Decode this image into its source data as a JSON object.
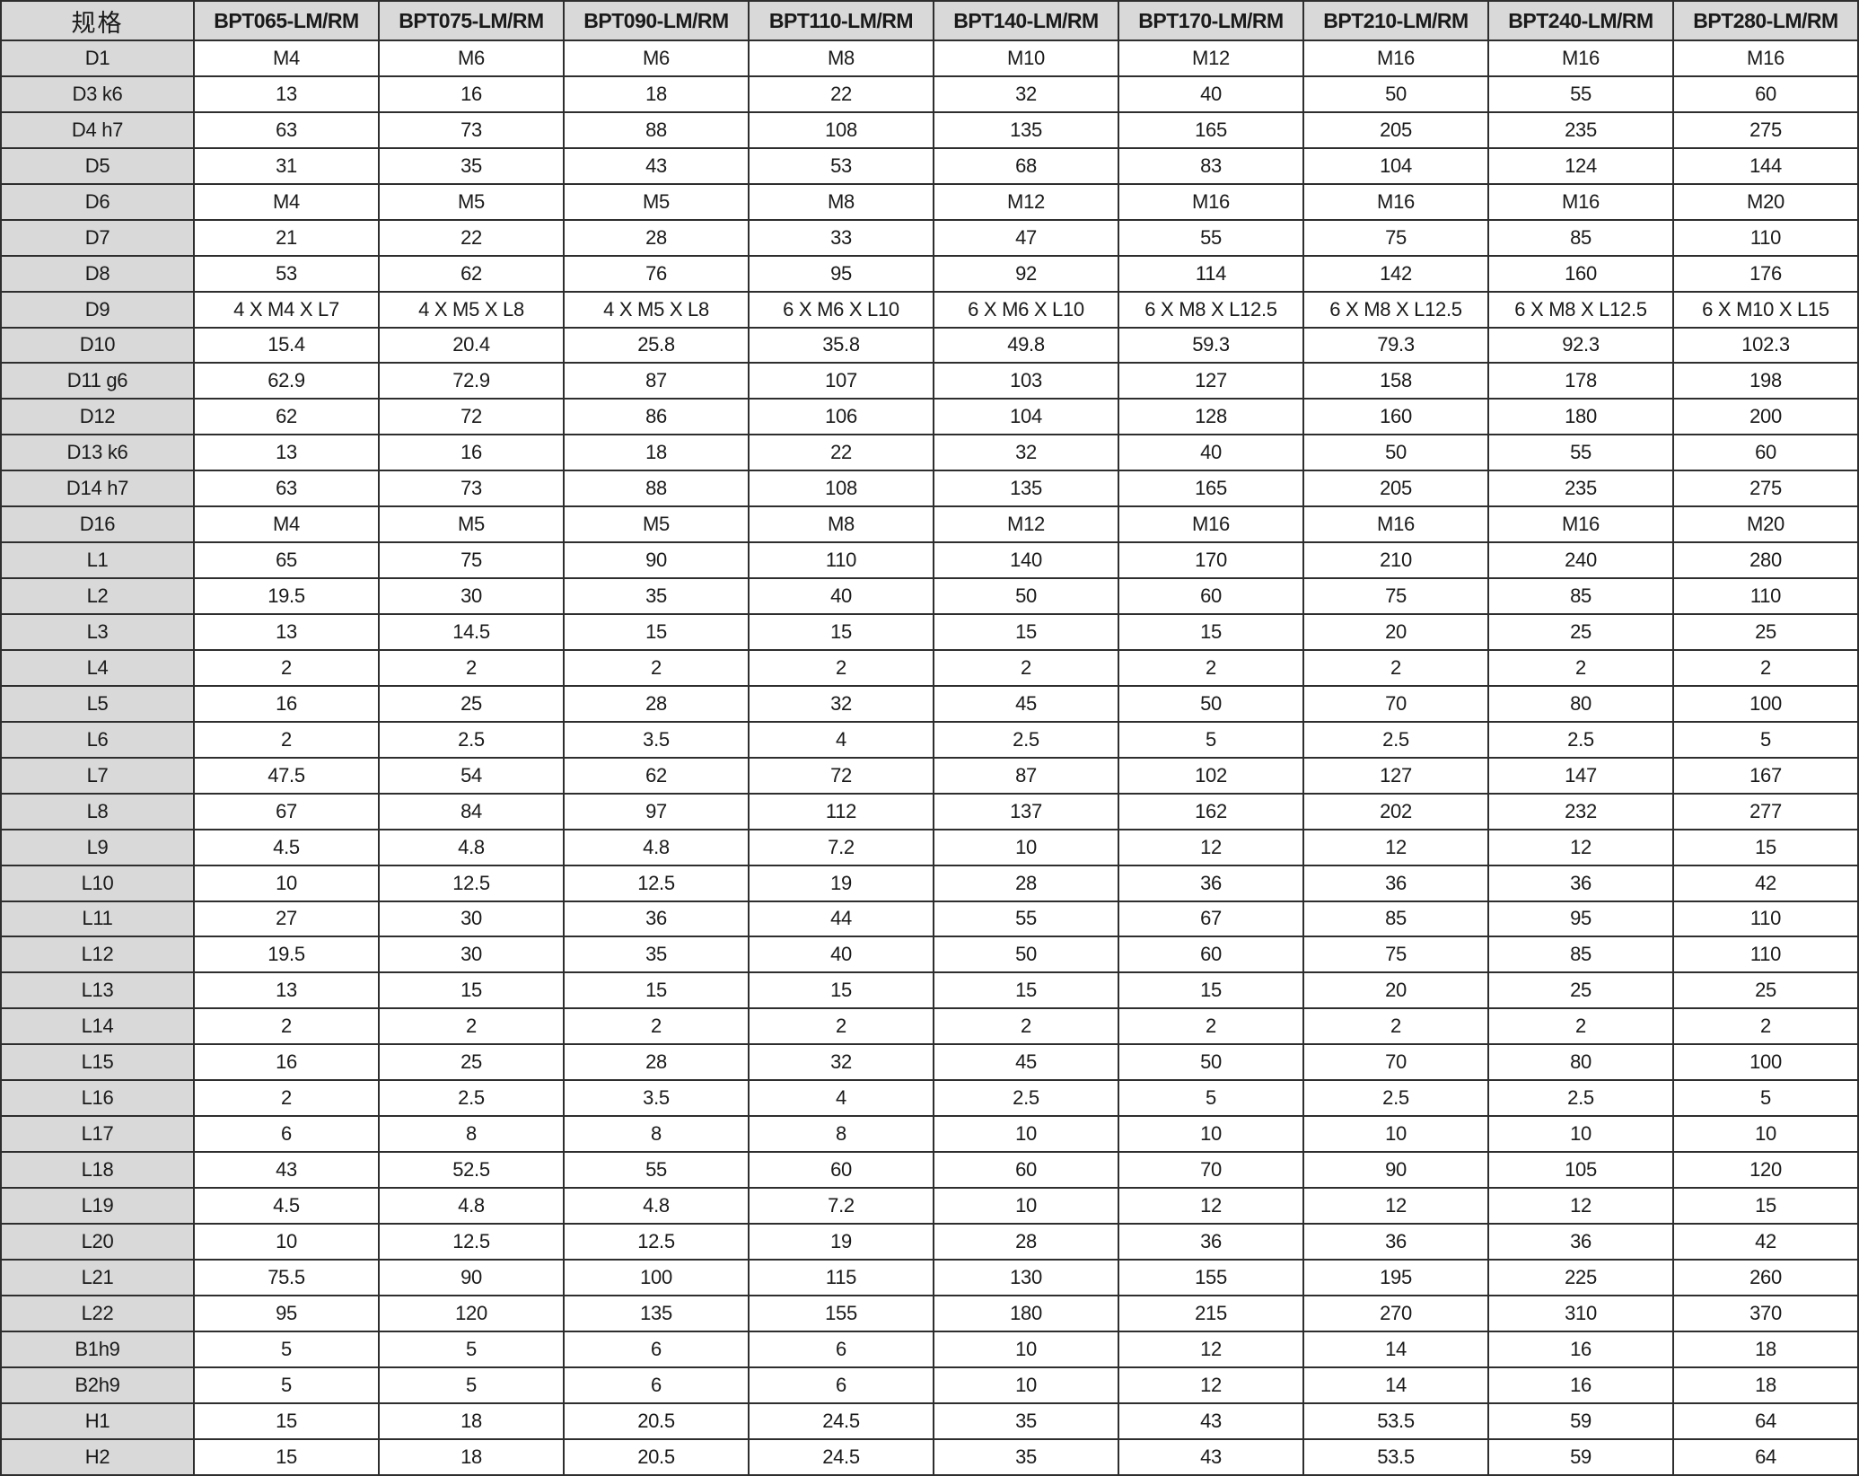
{
  "colors": {
    "header_bg": "#d9d9d9",
    "row_label_bg": "#d9d9d9",
    "cell_bg": "#ffffff",
    "border": "#2e2e2e",
    "text": "#1a1a1a"
  },
  "table": {
    "corner_label": "规格",
    "columns": [
      "BPT065-LM/RM",
      "BPT075-LM/RM",
      "BPT090-LM/RM",
      "BPT110-LM/RM",
      "BPT140-LM/RM",
      "BPT170-LM/RM",
      "BPT210-LM/RM",
      "BPT240-LM/RM",
      "BPT280-LM/RM"
    ],
    "rows": [
      {
        "label": "D1",
        "values": [
          "M4",
          "M6",
          "M6",
          "M8",
          "M10",
          "M12",
          "M16",
          "M16",
          "M16"
        ]
      },
      {
        "label": "D3 k6",
        "values": [
          "13",
          "16",
          "18",
          "22",
          "32",
          "40",
          "50",
          "55",
          "60"
        ]
      },
      {
        "label": "D4 h7",
        "values": [
          "63",
          "73",
          "88",
          "108",
          "135",
          "165",
          "205",
          "235",
          "275"
        ]
      },
      {
        "label": "D5",
        "values": [
          "31",
          "35",
          "43",
          "53",
          "68",
          "83",
          "104",
          "124",
          "144"
        ]
      },
      {
        "label": "D6",
        "values": [
          "M4",
          "M5",
          "M5",
          "M8",
          "M12",
          "M16",
          "M16",
          "M16",
          "M20"
        ]
      },
      {
        "label": "D7",
        "values": [
          "21",
          "22",
          "28",
          "33",
          "47",
          "55",
          "75",
          "85",
          "110"
        ]
      },
      {
        "label": "D8",
        "values": [
          "53",
          "62",
          "76",
          "95",
          "92",
          "114",
          "142",
          "160",
          "176"
        ]
      },
      {
        "label": "D9",
        "values": [
          "4 X M4 X L7",
          "4 X M5 X L8",
          "4 X M5 X L8",
          "6 X M6 X L10",
          "6 X M6 X L10",
          "6 X M8 X L12.5",
          "6 X M8 X L12.5",
          "6 X M8 X L12.5",
          "6 X M10 X L15"
        ]
      },
      {
        "label": "D10",
        "values": [
          "15.4",
          "20.4",
          "25.8",
          "35.8",
          "49.8",
          "59.3",
          "79.3",
          "92.3",
          "102.3"
        ]
      },
      {
        "label": "D11 g6",
        "values": [
          "62.9",
          "72.9",
          "87",
          "107",
          "103",
          "127",
          "158",
          "178",
          "198"
        ]
      },
      {
        "label": "D12",
        "values": [
          "62",
          "72",
          "86",
          "106",
          "104",
          "128",
          "160",
          "180",
          "200"
        ]
      },
      {
        "label": "D13 k6",
        "values": [
          "13",
          "16",
          "18",
          "22",
          "32",
          "40",
          "50",
          "55",
          "60"
        ]
      },
      {
        "label": "D14 h7",
        "values": [
          "63",
          "73",
          "88",
          "108",
          "135",
          "165",
          "205",
          "235",
          "275"
        ]
      },
      {
        "label": "D16",
        "values": [
          "M4",
          "M5",
          "M5",
          "M8",
          "M12",
          "M16",
          "M16",
          "M16",
          "M20"
        ]
      },
      {
        "label": "L1",
        "values": [
          "65",
          "75",
          "90",
          "110",
          "140",
          "170",
          "210",
          "240",
          "280"
        ]
      },
      {
        "label": "L2",
        "values": [
          "19.5",
          "30",
          "35",
          "40",
          "50",
          "60",
          "75",
          "85",
          "110"
        ]
      },
      {
        "label": "L3",
        "values": [
          "13",
          "14.5",
          "15",
          "15",
          "15",
          "15",
          "20",
          "25",
          "25"
        ]
      },
      {
        "label": "L4",
        "values": [
          "2",
          "2",
          "2",
          "2",
          "2",
          "2",
          "2",
          "2",
          "2"
        ]
      },
      {
        "label": "L5",
        "values": [
          "16",
          "25",
          "28",
          "32",
          "45",
          "50",
          "70",
          "80",
          "100"
        ]
      },
      {
        "label": "L6",
        "values": [
          "2",
          "2.5",
          "3.5",
          "4",
          "2.5",
          "5",
          "2.5",
          "2.5",
          "5"
        ]
      },
      {
        "label": "L7",
        "values": [
          "47.5",
          "54",
          "62",
          "72",
          "87",
          "102",
          "127",
          "147",
          "167"
        ]
      },
      {
        "label": "L8",
        "values": [
          "67",
          "84",
          "97",
          "112",
          "137",
          "162",
          "202",
          "232",
          "277"
        ]
      },
      {
        "label": "L9",
        "values": [
          "4.5",
          "4.8",
          "4.8",
          "7.2",
          "10",
          "12",
          "12",
          "12",
          "15"
        ]
      },
      {
        "label": "L10",
        "values": [
          "10",
          "12.5",
          "12.5",
          "19",
          "28",
          "36",
          "36",
          "36",
          "42"
        ]
      },
      {
        "label": "L11",
        "values": [
          "27",
          "30",
          "36",
          "44",
          "55",
          "67",
          "85",
          "95",
          "110"
        ]
      },
      {
        "label": "L12",
        "values": [
          "19.5",
          "30",
          "35",
          "40",
          "50",
          "60",
          "75",
          "85",
          "110"
        ]
      },
      {
        "label": "L13",
        "values": [
          "13",
          "15",
          "15",
          "15",
          "15",
          "15",
          "20",
          "25",
          "25"
        ]
      },
      {
        "label": "L14",
        "values": [
          "2",
          "2",
          "2",
          "2",
          "2",
          "2",
          "2",
          "2",
          "2"
        ]
      },
      {
        "label": "L15",
        "values": [
          "16",
          "25",
          "28",
          "32",
          "45",
          "50",
          "70",
          "80",
          "100"
        ]
      },
      {
        "label": "L16",
        "values": [
          "2",
          "2.5",
          "3.5",
          "4",
          "2.5",
          "5",
          "2.5",
          "2.5",
          "5"
        ]
      },
      {
        "label": "L17",
        "values": [
          "6",
          "8",
          "8",
          "8",
          "10",
          "10",
          "10",
          "10",
          "10"
        ]
      },
      {
        "label": "L18",
        "values": [
          "43",
          "52.5",
          "55",
          "60",
          "60",
          "70",
          "90",
          "105",
          "120"
        ]
      },
      {
        "label": "L19",
        "values": [
          "4.5",
          "4.8",
          "4.8",
          "7.2",
          "10",
          "12",
          "12",
          "12",
          "15"
        ]
      },
      {
        "label": "L20",
        "values": [
          "10",
          "12.5",
          "12.5",
          "19",
          "28",
          "36",
          "36",
          "36",
          "42"
        ]
      },
      {
        "label": "L21",
        "values": [
          "75.5",
          "90",
          "100",
          "115",
          "130",
          "155",
          "195",
          "225",
          "260"
        ]
      },
      {
        "label": "L22",
        "values": [
          "95",
          "120",
          "135",
          "155",
          "180",
          "215",
          "270",
          "310",
          "370"
        ]
      },
      {
        "label": "B1h9",
        "values": [
          "5",
          "5",
          "6",
          "6",
          "10",
          "12",
          "14",
          "16",
          "18"
        ]
      },
      {
        "label": "B2h9",
        "values": [
          "5",
          "5",
          "6",
          "6",
          "10",
          "12",
          "14",
          "16",
          "18"
        ]
      },
      {
        "label": "H1",
        "values": [
          "15",
          "18",
          "20.5",
          "24.5",
          "35",
          "43",
          "53.5",
          "59",
          "64"
        ]
      },
      {
        "label": "H2",
        "values": [
          "15",
          "18",
          "20.5",
          "24.5",
          "35",
          "43",
          "53.5",
          "59",
          "64"
        ]
      }
    ]
  }
}
